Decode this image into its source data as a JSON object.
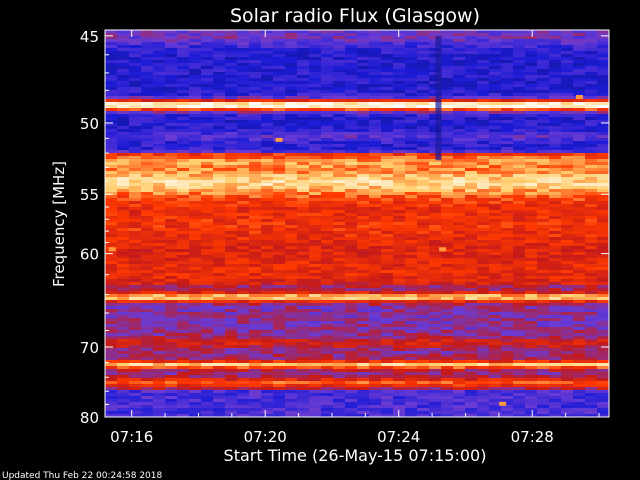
{
  "chart_data": {
    "type": "heatmap",
    "title": "Solar radio Flux (Glasgow)",
    "xlabel": "Start Time (26-May-15 07:15:00)",
    "ylabel": "Frequency [MHz]",
    "x_ticks": [
      "07:16",
      "07:20",
      "07:24",
      "07:28"
    ],
    "x_tick_minutes": [
      1,
      5,
      9,
      13
    ],
    "x_range_minutes": [
      0.2,
      15.3
    ],
    "y_ticks": [
      45,
      50,
      55,
      60,
      70,
      80
    ],
    "y_range": [
      44.7,
      80
    ],
    "y_scale": "reciprocal",
    "colormap": [
      "#12127a",
      "#1b1bd6",
      "#6a3bd4",
      "#c41a1a",
      "#ff3a00",
      "#ffd070",
      "#ffffff"
    ],
    "bands": [
      {
        "f": 45.0,
        "level": 0.35,
        "width": 0.5
      },
      {
        "f": 48.9,
        "level": 1.0,
        "width": 0.35
      },
      {
        "f": 50.9,
        "level": 0.3,
        "width": 0.3
      },
      {
        "f": 52.6,
        "level": 0.75,
        "width": 0.5
      },
      {
        "f": 54.2,
        "level": 0.92,
        "width": 1.2
      },
      {
        "f": 57.5,
        "level": 0.62,
        "width": 2.5
      },
      {
        "f": 61.5,
        "level": 0.6,
        "width": 1.5
      },
      {
        "f": 64.3,
        "level": 0.85,
        "width": 0.5
      },
      {
        "f": 69.5,
        "level": 0.55,
        "width": 0.6
      },
      {
        "f": 72.3,
        "level": 0.85,
        "width": 0.5
      },
      {
        "f": 74.8,
        "level": 0.7,
        "width": 0.6
      }
    ],
    "spots": [
      {
        "t": 0.4,
        "f": 59.6
      },
      {
        "t": 5.4,
        "f": 51.1
      },
      {
        "t": 10.3,
        "f": 59.6
      },
      {
        "t": 12.1,
        "f": 77.9
      },
      {
        "t": 14.4,
        "f": 48.4
      }
    ]
  },
  "footer": {
    "updated": "Updated Thu Feb 22 00:24:58 2018"
  }
}
